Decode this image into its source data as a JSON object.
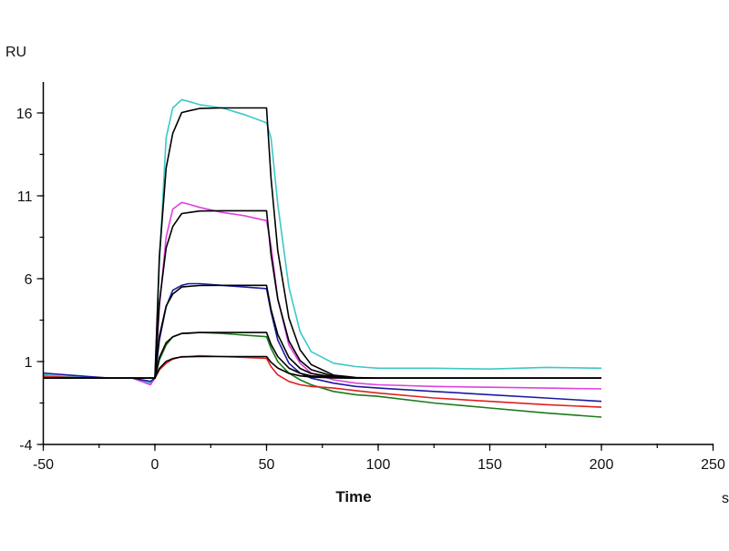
{
  "chart_data": {
    "type": "line",
    "title": "",
    "xlabel": "Time",
    "xunit": "s",
    "ylabel": "RU",
    "xlim": [
      -50,
      250
    ],
    "ylim": [
      -4,
      18
    ],
    "xticks": [
      -50,
      0,
      50,
      100,
      150,
      200,
      250
    ],
    "yticks": [
      -4,
      1,
      6,
      11,
      16
    ],
    "x_minor_step": 25,
    "y_minor_step": 2.5,
    "grid": false,
    "legend": "none",
    "x": [
      -50,
      -40,
      -30,
      -20,
      -10,
      -2,
      0,
      2,
      5,
      8,
      12,
      15,
      20,
      30,
      40,
      50,
      52,
      55,
      60,
      65,
      70,
      80,
      90,
      100,
      125,
      150,
      175,
      200
    ],
    "series": [
      {
        "name": "cyan-data",
        "color": "#3cc8c8",
        "values": [
          0.2,
          0.1,
          0.05,
          0,
          0,
          -0.3,
          0,
          7,
          14.5,
          16.3,
          16.8,
          16.7,
          16.5,
          16.3,
          15.9,
          15.4,
          14.5,
          10.5,
          5.5,
          2.8,
          1.6,
          0.9,
          0.7,
          0.6,
          0.6,
          0.55,
          0.65,
          0.6
        ]
      },
      {
        "name": "magenta-data",
        "color": "#e040e0",
        "values": [
          0.1,
          0.05,
          0,
          0,
          0,
          -0.4,
          0,
          4.3,
          8.5,
          10.2,
          10.6,
          10.5,
          10.3,
          10.0,
          9.8,
          9.5,
          8.0,
          4.8,
          2.0,
          0.9,
          0.3,
          -0.1,
          -0.3,
          -0.4,
          -0.5,
          -0.55,
          -0.6,
          -0.65
        ]
      },
      {
        "name": "blue-data",
        "color": "#1a1aa0",
        "values": [
          0.3,
          0.2,
          0.1,
          0,
          0,
          -0.2,
          0,
          2.3,
          4.3,
          5.3,
          5.6,
          5.7,
          5.7,
          5.6,
          5.5,
          5.4,
          4.0,
          2.3,
          0.9,
          0.3,
          0,
          -0.3,
          -0.5,
          -0.6,
          -0.8,
          -1.0,
          -1.2,
          -1.4
        ]
      },
      {
        "name": "green-data",
        "color": "#1a7a1a",
        "values": [
          0.1,
          0.05,
          0,
          0,
          0,
          0,
          0,
          1.1,
          2.0,
          2.5,
          2.7,
          2.7,
          2.75,
          2.7,
          2.6,
          2.5,
          1.8,
          1.0,
          0.3,
          -0.1,
          -0.4,
          -0.8,
          -1.0,
          -1.1,
          -1.5,
          -1.8,
          -2.1,
          -2.35
        ]
      },
      {
        "name": "red-data",
        "color": "#e02020",
        "values": [
          0.1,
          0.05,
          0,
          0,
          0,
          0,
          0,
          0.5,
          0.9,
          1.15,
          1.3,
          1.3,
          1.35,
          1.3,
          1.25,
          1.2,
          0.7,
          0.2,
          -0.2,
          -0.4,
          -0.5,
          -0.6,
          -0.75,
          -0.9,
          -1.2,
          -1.4,
          -1.6,
          -1.75
        ]
      },
      {
        "name": "fit-16.3",
        "color": "#000000",
        "values": [
          0,
          0,
          0,
          0,
          0,
          0,
          0,
          7.35,
          12.67,
          14.77,
          16.02,
          16.12,
          16.27,
          16.3,
          16.3,
          16.3,
          12.08,
          7.69,
          3.63,
          1.71,
          0.82,
          0.18,
          0.04,
          0,
          0,
          0,
          0,
          0
        ]
      },
      {
        "name": "fit-10.1",
        "color": "#000000",
        "values": [
          0,
          0,
          0,
          0,
          0,
          0,
          0,
          4.56,
          7.85,
          9.15,
          9.93,
          9.99,
          10.08,
          10.1,
          10.1,
          10.1,
          7.48,
          4.77,
          2.25,
          1.06,
          0.51,
          0.11,
          0.03,
          0,
          0,
          0,
          0,
          0
        ]
      },
      {
        "name": "fit-5.6",
        "color": "#000000",
        "values": [
          0,
          0,
          0,
          0,
          0,
          0,
          0,
          2.53,
          4.35,
          5.07,
          5.5,
          5.54,
          5.59,
          5.6,
          5.6,
          5.6,
          4.15,
          2.64,
          1.25,
          0.59,
          0.28,
          0.06,
          0.01,
          0,
          0,
          0,
          0,
          0
        ]
      },
      {
        "name": "fit-2.75",
        "color": "#000000",
        "values": [
          0,
          0,
          0,
          0,
          0,
          0,
          0,
          1.24,
          2.14,
          2.49,
          2.7,
          2.72,
          2.75,
          2.75,
          2.75,
          2.75,
          2.04,
          1.3,
          0.61,
          0.29,
          0.14,
          0.03,
          0,
          0,
          0,
          0,
          0,
          0
        ]
      },
      {
        "name": "fit-1.3",
        "color": "#000000",
        "values": [
          0,
          0,
          0,
          0,
          0,
          0,
          0,
          0.59,
          1.01,
          1.18,
          1.28,
          1.29,
          1.3,
          1.3,
          1.3,
          1.3,
          0.96,
          0.61,
          0.29,
          0.14,
          0.07,
          0.01,
          0,
          0,
          0,
          0,
          0,
          0
        ]
      }
    ]
  }
}
